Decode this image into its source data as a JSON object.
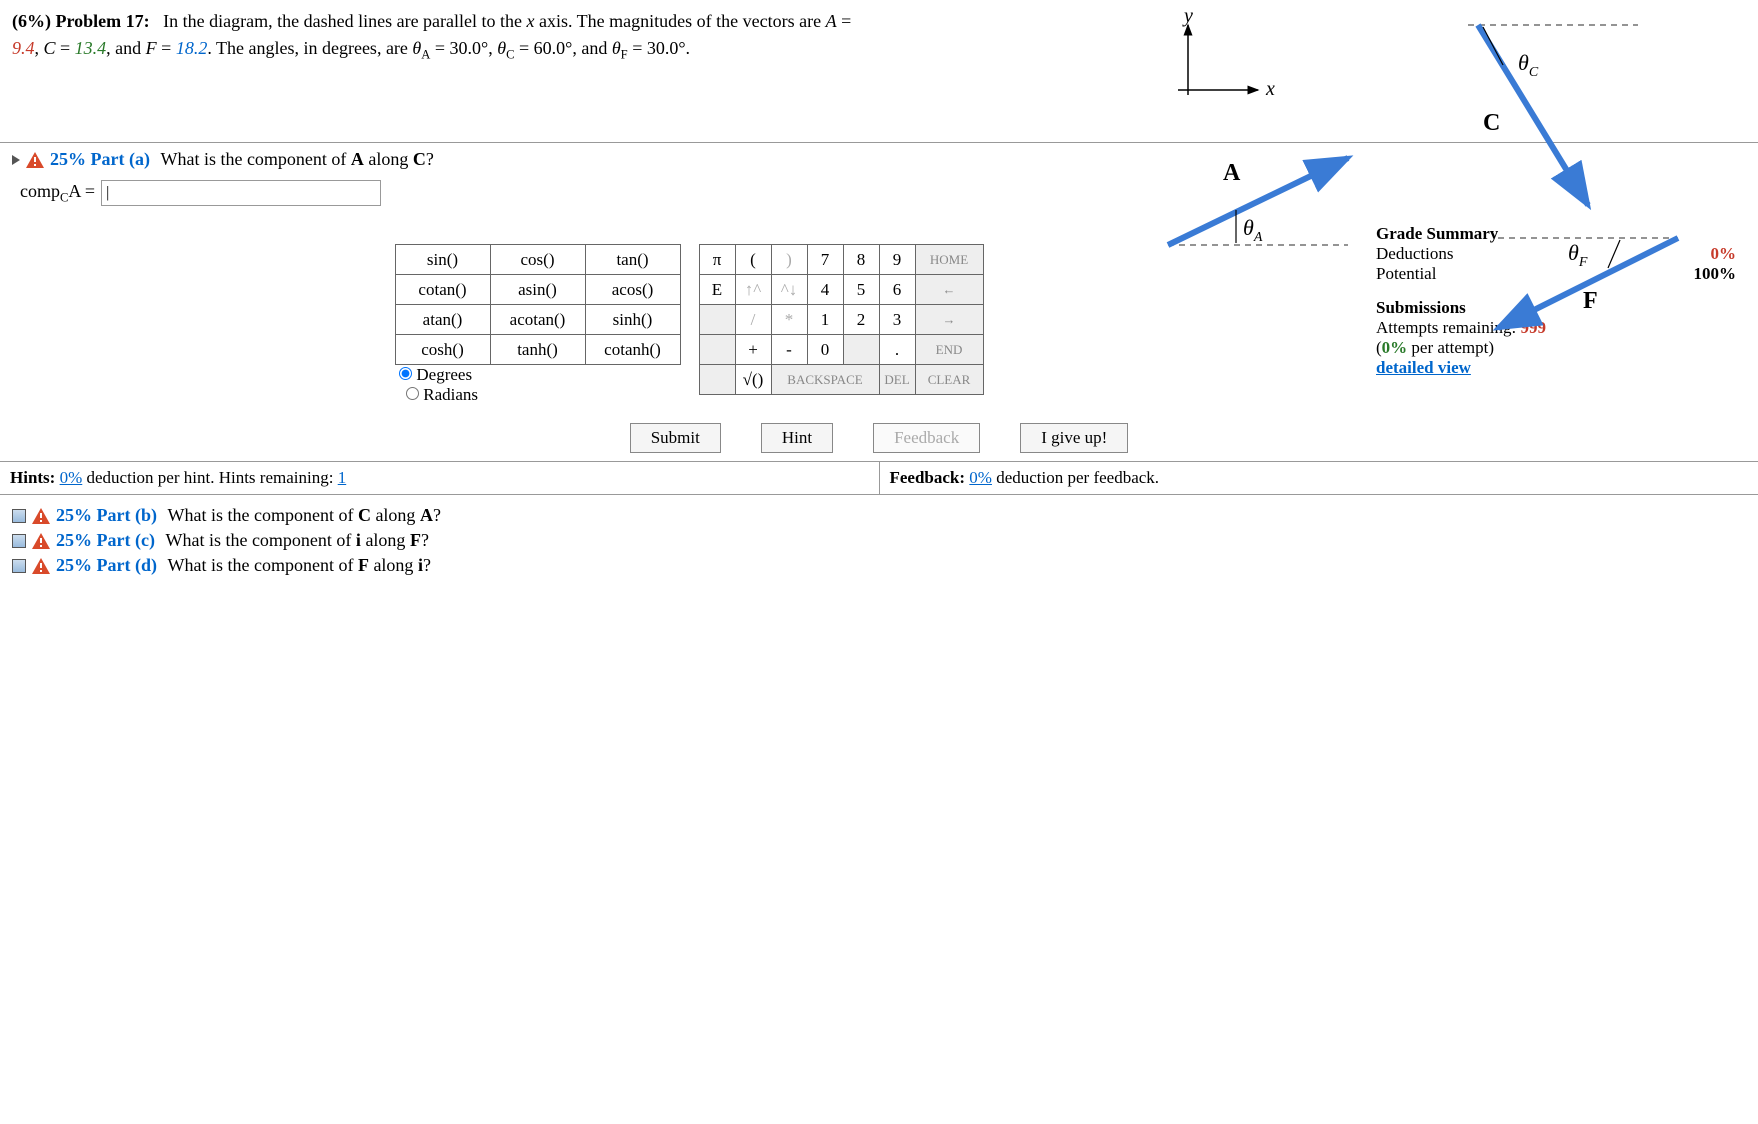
{
  "problem": {
    "weight": "(6%)",
    "number_label": "Problem 17:",
    "text_before_A": "In the diagram, the dashed lines are parallel to the ",
    "x_axis": "x",
    "text_axis_end": " axis. The magnitudes of the vectors are ",
    "A_label": "A",
    "eq": " = ",
    "A_val": "9.4",
    "comma1": ", ",
    "C_label": "C",
    "C_val": "13.4",
    "comma2": ", and ",
    "F_label": "F",
    "F_val": "18.2",
    "text_angles": ". The angles, in degrees, are ",
    "thetaA_label": "θ",
    "thetaA_sub": "A",
    "thetaA_val": " = 30.0°, ",
    "thetaC_label": "θ",
    "thetaC_sub": "C",
    "thetaC_val": " = 60.0°, and ",
    "thetaF_label": "θ",
    "thetaF_sub": "F",
    "thetaF_val": " = 30.0°."
  },
  "diagram": {
    "axis_y": "y",
    "axis_x": "x",
    "vec_A": "A",
    "vec_C": "C",
    "vec_F": "F",
    "theta_A": "θ",
    "theta_A_sub": "A",
    "theta_C": "θ",
    "theta_C_sub": "C",
    "theta_F": "θ",
    "theta_F_sub": "F",
    "arrow_color": "#3a7bd5",
    "dash_color": "#555"
  },
  "part_a": {
    "percent": "25%",
    "label": "Part (a)",
    "question": "What is the component of ",
    "vecA": "A",
    "along": " along ",
    "vecC": "C",
    "qmark": "?",
    "answer_prefix_main": "comp",
    "answer_prefix_sub": "C",
    "answer_prefix_vec": "A",
    "answer_eq": " = ",
    "input_value": "|"
  },
  "keypad": {
    "funcs": [
      [
        "sin()",
        "cos()",
        "tan()"
      ],
      [
        "cotan()",
        "asin()",
        "acos()"
      ],
      [
        "atan()",
        "acotan()",
        "sinh()"
      ],
      [
        "cosh()",
        "tanh()",
        "cotanh()"
      ]
    ],
    "mode_degrees": "Degrees",
    "mode_radians": "Radians",
    "num_rows": [
      [
        "π",
        "(",
        ")",
        "7",
        "8",
        "9",
        "HOME"
      ],
      [
        "E",
        "↑^",
        "^↓",
        "4",
        "5",
        "6",
        "←"
      ],
      [
        "",
        "/",
        "*",
        "1",
        "2",
        "3",
        "→"
      ],
      [
        "",
        "+",
        "-",
        "0",
        "",
        ".",
        "END"
      ]
    ],
    "bottom_row": [
      "",
      "√()",
      "BACKSPACE",
      "DEL",
      "CLEAR"
    ]
  },
  "grade": {
    "title": "Grade Summary",
    "deductions_label": "Deductions",
    "deductions_val": "0%",
    "potential_label": "Potential",
    "potential_val": "100%",
    "subs_title": "Submissions",
    "attempts_label": "Attempts remaining: ",
    "attempts_val": "999",
    "per_attempt": "(",
    "per_attempt_pct": "0%",
    "per_attempt_end": " per attempt)",
    "detailed": "detailed view"
  },
  "actions": {
    "submit": "Submit",
    "hint": "Hint",
    "feedback": "Feedback",
    "giveup": "I give up!"
  },
  "footer": {
    "hints_bold": "Hints:",
    "hints_pct": "0%",
    "hints_mid": " deduction per hint. Hints remaining: ",
    "hints_remaining": "1",
    "feedback_bold": "Feedback:",
    "feedback_pct": "0%",
    "feedback_end": " deduction per feedback."
  },
  "other_parts": {
    "b": {
      "pct": "25%",
      "label": "Part (b)",
      "q": "What is the component of ",
      "v1": "C",
      "along": " along ",
      "v2": "A",
      "end": "?"
    },
    "c": {
      "pct": "25%",
      "label": "Part (c)",
      "q": "What is the component of ",
      "v1": "i",
      "along": " along ",
      "v2": "F",
      "end": "?"
    },
    "d": {
      "pct": "25%",
      "label": "Part (d)",
      "q": "What is the component of ",
      "v1": "F",
      "along": " along ",
      "v2": "i",
      "end": "?"
    }
  }
}
